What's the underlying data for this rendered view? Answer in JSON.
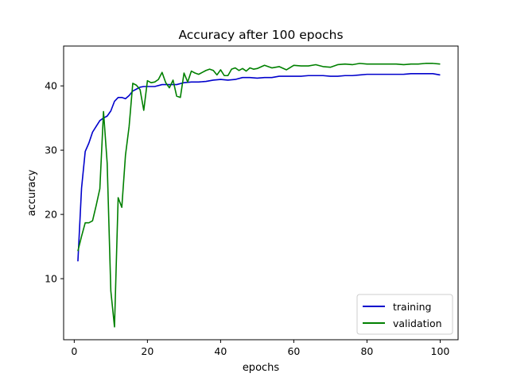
{
  "chart_data": {
    "type": "line",
    "title": "Accuracy after 100 epochs",
    "xlabel": "epochs",
    "ylabel": "accuracy",
    "xlim": [
      -2.9,
      104.9
    ],
    "ylim": [
      0.5,
      46.2
    ],
    "xticks": [
      0,
      20,
      40,
      60,
      80,
      100
    ],
    "yticks": [
      10,
      20,
      30,
      40
    ],
    "grid": false,
    "legend_position": "lower-right",
    "series": [
      {
        "name": "training",
        "color": "#0000cc",
        "x": [
          1,
          2,
          3,
          4,
          5,
          6,
          7,
          8,
          9,
          10,
          11,
          12,
          13,
          14,
          15,
          16,
          17,
          18,
          19,
          20,
          22,
          24,
          26,
          28,
          30,
          32,
          34,
          36,
          38,
          40,
          42,
          44,
          46,
          48,
          50,
          52,
          54,
          56,
          58,
          60,
          62,
          64,
          66,
          68,
          70,
          72,
          74,
          76,
          78,
          80,
          82,
          84,
          86,
          88,
          90,
          92,
          94,
          96,
          98,
          100
        ],
        "values": [
          12.7,
          24.1,
          29.8,
          31.1,
          32.8,
          33.7,
          34.6,
          35.0,
          35.3,
          36.1,
          37.6,
          38.2,
          38.2,
          38.0,
          38.5,
          39.2,
          39.5,
          39.8,
          39.9,
          39.9,
          39.9,
          40.2,
          40.2,
          40.2,
          40.5,
          40.6,
          40.6,
          40.7,
          40.9,
          41.0,
          40.9,
          41.0,
          41.3,
          41.3,
          41.2,
          41.3,
          41.3,
          41.5,
          41.5,
          41.5,
          41.5,
          41.6,
          41.6,
          41.6,
          41.5,
          41.5,
          41.6,
          41.6,
          41.7,
          41.8,
          41.8,
          41.8,
          41.8,
          41.8,
          41.8,
          41.9,
          41.9,
          41.9,
          41.9,
          41.7
        ]
      },
      {
        "name": "validation",
        "color": "#008000",
        "x": [
          1,
          2,
          3,
          4,
          5,
          6,
          7,
          8,
          9,
          10,
          11,
          12,
          13,
          14,
          15,
          16,
          17,
          18,
          19,
          20,
          21,
          22,
          23,
          24,
          25,
          26,
          27,
          28,
          29,
          30,
          31,
          32,
          33,
          34,
          35,
          36,
          37,
          38,
          39,
          40,
          41,
          42,
          43,
          44,
          45,
          46,
          47,
          48,
          49,
          50,
          52,
          54,
          56,
          58,
          60,
          62,
          64,
          66,
          68,
          70,
          72,
          74,
          76,
          78,
          80,
          82,
          84,
          86,
          88,
          90,
          92,
          94,
          96,
          98,
          100
        ],
        "values": [
          14.3,
          16.6,
          18.7,
          18.7,
          19.0,
          21.4,
          24.0,
          36.0,
          28.0,
          8.1,
          2.5,
          22.6,
          21.1,
          29.2,
          33.7,
          40.4,
          40.1,
          39.4,
          36.2,
          40.8,
          40.5,
          40.6,
          41.0,
          42.1,
          40.5,
          39.7,
          40.9,
          38.4,
          38.2,
          42.0,
          40.6,
          42.3,
          42.0,
          41.8,
          42.1,
          42.4,
          42.6,
          42.4,
          41.7,
          42.5,
          41.6,
          41.6,
          42.6,
          42.8,
          42.4,
          42.7,
          42.3,
          42.8,
          42.6,
          42.7,
          43.2,
          42.8,
          43.0,
          42.5,
          43.2,
          43.1,
          43.1,
          43.3,
          43.0,
          42.9,
          43.3,
          43.4,
          43.3,
          43.5,
          43.4,
          43.4,
          43.4,
          43.4,
          43.4,
          43.3,
          43.4,
          43.4,
          43.5,
          43.5,
          43.4
        ]
      }
    ]
  }
}
